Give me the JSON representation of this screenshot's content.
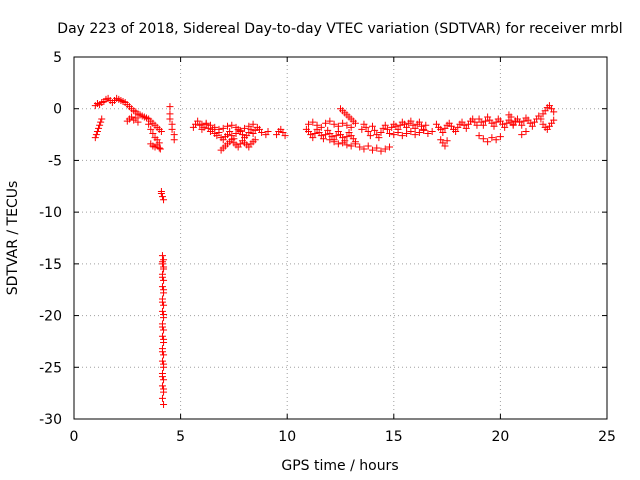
{
  "chart_data": {
    "type": "scatter",
    "title": "Day 223 of 2018, Sidereal Day-to-day VTEC variation (SDTVAR) for receiver mrbl",
    "xlabel": "GPS time / hours",
    "ylabel": "SDTVAR / TECUs",
    "xlim": [
      0,
      25
    ],
    "ylim": [
      -30,
      5
    ],
    "xticks": [
      0,
      5,
      10,
      15,
      20,
      25
    ],
    "yticks": [
      5,
      0,
      -5,
      -10,
      -15,
      -20,
      -25,
      -30
    ],
    "xtick_labels": [
      "0",
      "5",
      "10",
      "15",
      "20",
      "25"
    ],
    "ytick_labels": [
      "5",
      "0",
      "-5",
      "-10",
      "-15",
      "-20",
      "-25",
      "-30"
    ],
    "grid": true,
    "marker": "+",
    "color": "#ff0000",
    "series": [
      {
        "name": "mrbl",
        "x": [
          1.0,
          1.1,
          1.2,
          1.3,
          1.4,
          1.5,
          1.6,
          1.7,
          1.8,
          1.9,
          2.0,
          2.1,
          2.2,
          2.3,
          2.4,
          2.5,
          2.6,
          2.7,
          2.8,
          2.9,
          3.0,
          3.1,
          3.2,
          3.3,
          3.4,
          3.5,
          3.6,
          3.7,
          3.8,
          3.9,
          4.0,
          4.1,
          1.0,
          1.05,
          1.1,
          1.15,
          1.2,
          1.25,
          1.3,
          2.5,
          2.6,
          2.7,
          2.8,
          2.9,
          3.0,
          3.5,
          3.6,
          3.7,
          3.8,
          3.9,
          4.0,
          3.6,
          3.7,
          3.8,
          3.9,
          4.0,
          4.05,
          4.1,
          4.1,
          4.15,
          4.2,
          4.15,
          4.2,
          4.15,
          4.2,
          4.15,
          4.2,
          4.15,
          4.2,
          4.15,
          4.2,
          4.15,
          4.2,
          4.15,
          4.2,
          4.15,
          4.2,
          4.15,
          4.2,
          4.15,
          4.2,
          4.15,
          4.2,
          4.15,
          4.2,
          4.15,
          4.2,
          4.15,
          4.2,
          4.15,
          4.2,
          4.15,
          4.2,
          4.15,
          4.2,
          4.15,
          4.2,
          4.15,
          4.2,
          4.5,
          4.5,
          4.5,
          4.6,
          4.6,
          4.7,
          4.7,
          5.6,
          5.7,
          5.8,
          5.9,
          6.0,
          6.1,
          6.2,
          6.3,
          6.4,
          6.5,
          6.6,
          6.7,
          6.8,
          6.9,
          7.0,
          7.1,
          7.2,
          7.3,
          7.4,
          7.5,
          7.6,
          7.7,
          7.8,
          7.9,
          8.0,
          8.1,
          8.2,
          8.3,
          8.4,
          8.5,
          8.6,
          8.7,
          8.8,
          9.0,
          9.1,
          6.0,
          6.2,
          6.4,
          6.6,
          6.8,
          7.0,
          7.2,
          7.4,
          7.6,
          7.8,
          8.0,
          8.2,
          8.4,
          6.9,
          7.0,
          7.1,
          7.2,
          7.3,
          7.4,
          7.5,
          7.6,
          7.7,
          7.8,
          7.9,
          8.0,
          8.1,
          8.2,
          8.3,
          8.4,
          8.5,
          9.5,
          9.6,
          9.7,
          9.8,
          9.9,
          10.9,
          11.0,
          11.1,
          11.2,
          11.3,
          11.4,
          11.5,
          11.6,
          11.7,
          11.8,
          11.9,
          12.0,
          12.1,
          12.2,
          12.3,
          12.4,
          12.5,
          12.6,
          12.7,
          12.8,
          12.9,
          13.0,
          13.1,
          13.2,
          11.0,
          11.2,
          11.4,
          11.6,
          11.8,
          12.0,
          12.2,
          12.4,
          12.6,
          12.8,
          13.0,
          12.5,
          12.6,
          12.7,
          12.8,
          12.9,
          13.0,
          13.1,
          13.2,
          12.0,
          12.2,
          12.4,
          12.6,
          12.8,
          13.0,
          13.2,
          13.4,
          13.6,
          13.8,
          14.0,
          14.2,
          14.4,
          14.6,
          14.8,
          13.5,
          13.6,
          13.7,
          13.8,
          13.9,
          14.0,
          14.1,
          14.2,
          14.3,
          14.4,
          14.5,
          14.6,
          14.7,
          14.8,
          14.9,
          15.0,
          15.1,
          15.2,
          15.3,
          15.4,
          15.5,
          15.6,
          15.7,
          15.8,
          15.9,
          16.0,
          16.1,
          16.2,
          16.3,
          16.4,
          16.5,
          15.0,
          15.2,
          15.4,
          15.6,
          15.8,
          16.0,
          16.2,
          16.4,
          16.6,
          16.8,
          17.0,
          17.1,
          17.2,
          17.3,
          17.4,
          17.5,
          17.6,
          17.7,
          17.8,
          17.9,
          18.0,
          18.1,
          18.2,
          18.3,
          18.4,
          18.5,
          18.6,
          18.7,
          18.8,
          18.9,
          17.2,
          17.3,
          17.4,
          17.5,
          19.0,
          19.1,
          19.2,
          19.3,
          19.4,
          19.5,
          19.6,
          19.7,
          19.8,
          19.9,
          20.0,
          20.1,
          20.2,
          20.3,
          20.4,
          20.5,
          20.6,
          20.7,
          19.0,
          19.2,
          19.4,
          19.6,
          19.8,
          20.0,
          20.6,
          20.7,
          20.8,
          20.9,
          21.0,
          21.1,
          21.2,
          21.3,
          21.4,
          21.5,
          21.6,
          21.7,
          21.8,
          21.9,
          22.0,
          22.1,
          22.2,
          22.3,
          22.4,
          22.5,
          22.0,
          22.1,
          22.2,
          22.3,
          22.4,
          22.5,
          20.4,
          20.5,
          21.0,
          21.2
        ],
        "y": [
          0.3,
          0.5,
          0.4,
          0.6,
          0.7,
          0.9,
          1.0,
          0.8,
          0.6,
          0.8,
          1.0,
          0.9,
          0.8,
          0.7,
          0.6,
          0.4,
          0.2,
          0.0,
          -0.2,
          -0.3,
          -0.5,
          -0.6,
          -0.7,
          -0.8,
          -0.9,
          -1.0,
          -1.2,
          -1.4,
          -1.6,
          -1.8,
          -2.0,
          -2.2,
          -2.8,
          -2.5,
          -2.2,
          -1.9,
          -1.6,
          -1.3,
          -1.0,
          -1.2,
          -1.0,
          -0.8,
          -1.1,
          -0.9,
          -1.3,
          -1.5,
          -2.0,
          -2.4,
          -2.8,
          -3.0,
          -3.3,
          -3.4,
          -3.6,
          -3.7,
          -3.5,
          -3.8,
          -3.9,
          -8.0,
          -8.2,
          -8.5,
          -8.8,
          -14.2,
          -14.6,
          -15.0,
          -15.5,
          -16.0,
          -16.6,
          -17.2,
          -17.8,
          -18.4,
          -19.0,
          -19.6,
          -20.2,
          -20.8,
          -21.4,
          -22.0,
          -22.6,
          -23.2,
          -23.8,
          -24.4,
          -25.0,
          -25.6,
          -26.2,
          -26.8,
          -27.4,
          -28.0,
          -28.6,
          -14.8,
          -15.3,
          -16.3,
          -17.5,
          -18.7,
          -19.9,
          -21.1,
          -22.3,
          -23.5,
          -24.7,
          -25.9,
          -27.1,
          0.2,
          -0.5,
          -1.0,
          -1.5,
          -2.0,
          -2.5,
          -3.0,
          -1.8,
          -1.5,
          -1.2,
          -1.6,
          -2.0,
          -1.8,
          -1.5,
          -1.9,
          -2.2,
          -2.0,
          -2.4,
          -2.6,
          -2.3,
          -2.8,
          -3.0,
          -2.7,
          -2.5,
          -2.2,
          -2.6,
          -2.9,
          -2.4,
          -2.0,
          -2.2,
          -2.5,
          -2.8,
          -2.6,
          -2.3,
          -2.0,
          -2.4,
          -2.1,
          -1.8,
          -2.0,
          -2.3,
          -2.5,
          -2.2,
          -1.5,
          -1.4,
          -1.6,
          -1.8,
          -2.0,
          -1.9,
          -1.7,
          -1.6,
          -1.8,
          -2.1,
          -1.9,
          -1.7,
          -1.5,
          -4.0,
          -3.8,
          -3.6,
          -3.4,
          -3.2,
          -3.0,
          -3.3,
          -3.5,
          -3.7,
          -3.4,
          -3.1,
          -3.3,
          -3.5,
          -3.7,
          -3.4,
          -3.2,
          -3.0,
          -2.5,
          -2.2,
          -2.0,
          -2.3,
          -2.6,
          -2.0,
          -2.2,
          -2.5,
          -2.8,
          -2.4,
          -2.0,
          -2.3,
          -2.6,
          -2.9,
          -2.5,
          -2.1,
          -2.4,
          -2.7,
          -3.0,
          -2.6,
          -2.2,
          -2.5,
          -2.8,
          -3.1,
          -2.7,
          -2.3,
          -2.6,
          -2.9,
          -3.2,
          -1.5,
          -1.3,
          -1.6,
          -1.8,
          -1.4,
          -1.2,
          -1.5,
          -1.7,
          -1.4,
          -1.6,
          -1.8,
          0.0,
          -0.2,
          -0.4,
          -0.6,
          -0.8,
          -1.0,
          -1.2,
          -1.4,
          -3.0,
          -3.2,
          -3.4,
          -3.3,
          -3.5,
          -3.6,
          -3.4,
          -3.7,
          -3.9,
          -3.6,
          -4.0,
          -3.8,
          -4.1,
          -3.9,
          -3.7,
          -2.0,
          -1.5,
          -1.8,
          -2.2,
          -2.6,
          -1.7,
          -2.1,
          -2.5,
          -2.8,
          -2.3,
          -1.9,
          -1.6,
          -2.0,
          -2.4,
          -1.8,
          -1.5,
          -1.7,
          -2.0,
          -1.6,
          -1.3,
          -1.5,
          -1.8,
          -1.4,
          -1.2,
          -1.6,
          -1.9,
          -1.5,
          -1.3,
          -1.7,
          -2.0,
          -1.6,
          -2.5,
          -2.3,
          -2.6,
          -2.4,
          -2.2,
          -2.5,
          -2.3,
          -2.1,
          -2.4,
          -2.2,
          -1.5,
          -1.8,
          -2.0,
          -2.3,
          -1.9,
          -1.6,
          -1.4,
          -1.7,
          -2.0,
          -2.2,
          -1.8,
          -1.5,
          -1.3,
          -1.6,
          -1.9,
          -1.5,
          -1.2,
          -1.0,
          -1.3,
          -1.6,
          -3.0,
          -3.3,
          -3.6,
          -3.1,
          -1.0,
          -1.3,
          -1.6,
          -1.2,
          -0.8,
          -1.1,
          -1.4,
          -1.7,
          -1.3,
          -1.0,
          -1.2,
          -1.5,
          -1.8,
          -1.4,
          -1.1,
          -1.3,
          -1.6,
          -1.2,
          -2.6,
          -2.9,
          -3.2,
          -2.8,
          -3.0,
          -2.7,
          -1.5,
          -1.2,
          -1.0,
          -1.3,
          -1.6,
          -1.2,
          -0.9,
          -1.1,
          -1.4,
          -1.7,
          -1.3,
          -1.0,
          -0.7,
          -1.0,
          -0.5,
          -0.2,
          0.1,
          0.3,
          0.0,
          -0.3,
          -1.5,
          -1.8,
          -2.0,
          -1.7,
          -1.4,
          -1.1,
          -0.6,
          -0.8,
          -2.5,
          -2.2
        ]
      }
    ]
  }
}
